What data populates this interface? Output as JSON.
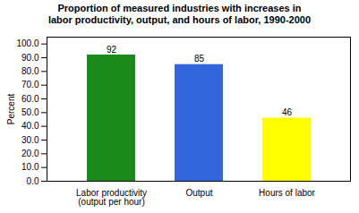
{
  "chart_data": {
    "type": "bar",
    "title": "Proportion of measured industries with increases in\nlabor productivity, output, and hours of labor, 1990-2000",
    "categories": [
      "Labor productivity\n(output per hour)",
      "Output",
      "Hours of labor"
    ],
    "values": [
      92,
      85,
      46
    ],
    "colors": [
      "#1a8a1a",
      "#3366dd",
      "#ffff00"
    ],
    "ylabel": "Percent",
    "ylim": [
      0,
      105
    ],
    "yticks": [
      {
        "value": 0,
        "label": "0.0"
      },
      {
        "value": 10,
        "label": "10.0"
      },
      {
        "value": 20,
        "label": "20.0"
      },
      {
        "value": 30,
        "label": "30.0"
      },
      {
        "value": 40,
        "label": "40.0"
      },
      {
        "value": 50,
        "label": "50.0"
      },
      {
        "value": 60,
        "label": "60.0"
      },
      {
        "value": 70,
        "label": "70.0"
      },
      {
        "value": 80,
        "label": "80.0"
      },
      {
        "value": 90,
        "label": "90.0"
      },
      {
        "value": 100,
        "label": "100.0"
      }
    ],
    "grid": false,
    "data_labels": true
  }
}
